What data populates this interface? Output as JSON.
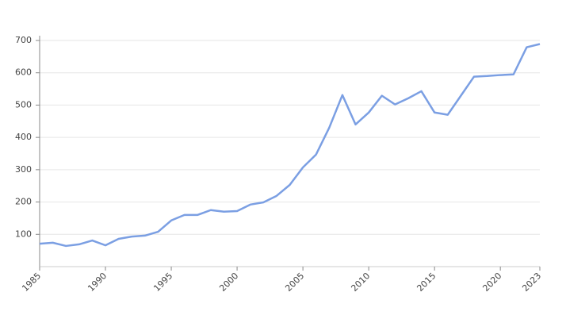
{
  "chart_data": {
    "type": "line",
    "x": [
      1985,
      1986,
      1987,
      1988,
      1989,
      1990,
      1991,
      1992,
      1993,
      1994,
      1995,
      1996,
      1997,
      1998,
      1999,
      2000,
      2001,
      2002,
      2003,
      2004,
      2005,
      2006,
      2007,
      2008,
      2009,
      2010,
      2011,
      2012,
      2013,
      2014,
      2015,
      2016,
      2017,
      2018,
      2019,
      2020,
      2021,
      2022,
      2023
    ],
    "series": [
      {
        "color": "#7b9fe3",
        "values": [
          71,
          74,
          64,
          69,
          81,
          66,
          86,
          93,
          96,
          108,
          143,
          160,
          160,
          175,
          170,
          172,
          192,
          199,
          219,
          253,
          307,
          347,
          430,
          531,
          440,
          477,
          529,
          502,
          521,
          543,
          477,
          470,
          529,
          588,
          590,
          593,
          595,
          679,
          689
        ]
      }
    ],
    "xlim": [
      1985,
      2023
    ],
    "xticks": [
      1985,
      1990,
      1995,
      2000,
      2005,
      2010,
      2015,
      2020,
      2023
    ],
    "ylim": [
      0,
      700
    ],
    "yticks": [
      100,
      200,
      300,
      400,
      500,
      600,
      700
    ],
    "grid": true
  }
}
